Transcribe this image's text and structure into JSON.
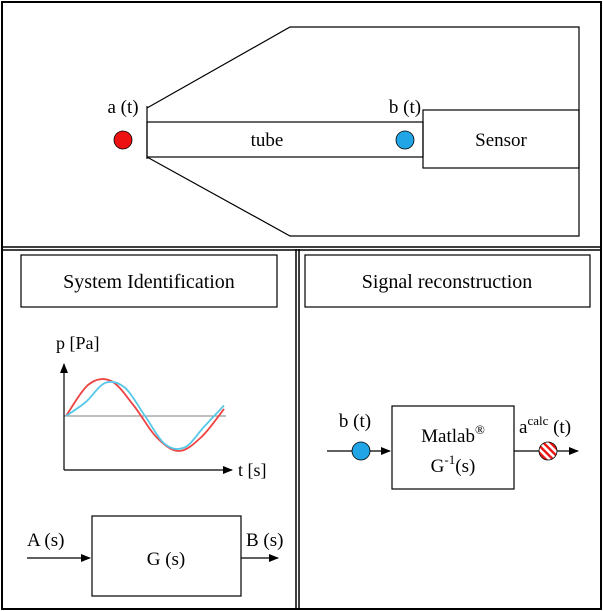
{
  "top_panel": {
    "input_label": "a (t)",
    "tube_label": "tube",
    "output_label": "b (t)",
    "sensor_label": "Sensor"
  },
  "left_panel": {
    "title": "System Identification",
    "chart": {
      "ylabel": "p [Pa]",
      "xlabel": "t [s]"
    },
    "block": {
      "label": "G (s)",
      "input_label": "A (s)",
      "output_label": "B (s)"
    }
  },
  "right_panel": {
    "title": "Signal reconstruction",
    "block_line1_main": "Matlab",
    "block_line1_sup": "®",
    "block_line2_main": "G",
    "block_line2_sup": "-1",
    "block_line2_tail": "(s)",
    "input_label": "b (t)",
    "output_main": "a",
    "output_sup": "calc",
    "output_tail": " (t)"
  },
  "colors": {
    "input_dot": "#ee1111",
    "output_dot": "#22a5e6",
    "wave_red": "#ee4444",
    "wave_blue": "#55c8e8",
    "border": "#000000"
  },
  "chart_data": {
    "type": "line",
    "xlabel": "t [s]",
    "ylabel": "p [Pa]",
    "series": [
      {
        "color": "#ee4444",
        "values": [
          0,
          0.9,
          1.0,
          0.3,
          -0.6,
          -1.0,
          -0.6,
          0.2
        ]
      },
      {
        "color": "#55c8e8",
        "values": [
          0,
          0.4,
          0.95,
          0.8,
          0.0,
          -0.8,
          -0.9,
          -0.3,
          0.3
        ]
      }
    ]
  }
}
